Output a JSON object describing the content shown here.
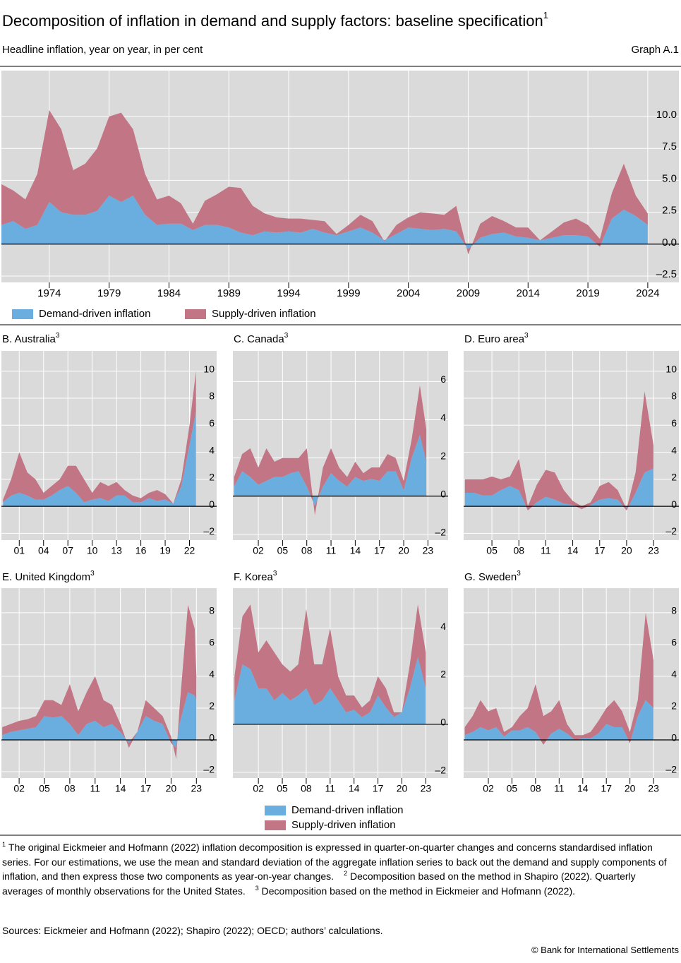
{
  "header": {
    "title": "Decomposition of inflation in demand and supply factors: baseline specification",
    "title_note": "1",
    "subtitle": "Headline inflation, year on year, in per cent",
    "graph_label": "Graph A.1"
  },
  "chart_data": [
    {
      "type": "area",
      "title": "A. United States",
      "title_note": "2",
      "x": [
        1970,
        1971,
        1972,
        1973,
        1974,
        1975,
        1976,
        1977,
        1978,
        1979,
        1980,
        1981,
        1982,
        1983,
        1984,
        1985,
        1986,
        1987,
        1988,
        1989,
        1990,
        1991,
        1992,
        1993,
        1994,
        1995,
        1996,
        1997,
        1998,
        1999,
        2000,
        2001,
        2002,
        2003,
        2004,
        2005,
        2006,
        2007,
        2008,
        2009,
        2010,
        2011,
        2012,
        2013,
        2014,
        2015,
        2016,
        2017,
        2018,
        2019,
        2020,
        2021,
        2022,
        2023,
        2024
      ],
      "series": [
        {
          "name": "Demand-driven inflation",
          "color": "#6aaee0",
          "values": [
            1.5,
            1.8,
            1.2,
            1.5,
            3.3,
            2.5,
            2.3,
            2.3,
            2.6,
            3.8,
            3.3,
            3.8,
            2.3,
            1.5,
            1.6,
            1.6,
            1.1,
            1.5,
            1.5,
            1.3,
            0.9,
            0.7,
            1.0,
            0.9,
            1.0,
            0.9,
            1.2,
            0.9,
            0.7,
            1.0,
            1.3,
            0.9,
            0.3,
            0.8,
            1.3,
            1.2,
            1.1,
            1.2,
            1.0,
            -0.4,
            0.5,
            0.8,
            0.9,
            0.6,
            0.5,
            0.3,
            0.5,
            0.7,
            0.7,
            0.6,
            -0.2,
            2.0,
            2.7,
            2.2,
            1.5
          ]
        },
        {
          "name": "Supply-driven inflation",
          "color": "#c27585",
          "values": [
            3.2,
            2.4,
            2.3,
            4.0,
            7.2,
            6.5,
            3.5,
            4.0,
            4.9,
            6.2,
            7.0,
            5.2,
            3.2,
            2.0,
            2.2,
            1.6,
            0.5,
            1.9,
            2.4,
            3.2,
            3.5,
            2.3,
            1.4,
            1.2,
            1.0,
            1.1,
            0.7,
            0.9,
            0.1,
            0.5,
            1.0,
            0.9,
            -0.1,
            0.7,
            0.8,
            1.3,
            1.3,
            1.1,
            2.0,
            -0.4,
            1.1,
            1.4,
            0.9,
            0.7,
            0.8,
            0.0,
            0.5,
            1.0,
            1.3,
            0.9,
            0.6,
            2.0,
            3.6,
            1.6,
            0.9
          ]
        }
      ],
      "xlim": [
        1970,
        2026.6
      ],
      "xticks": [
        1974,
        1979,
        1984,
        1989,
        1994,
        1999,
        2004,
        2009,
        2014,
        2019,
        2024
      ],
      "ylim": [
        -3,
        13.6
      ],
      "yticks": [
        {
          "value": -2.5,
          "label": "–2.5"
        },
        {
          "value": 0,
          "label": "0.0"
        },
        2.5,
        {
          "value": 5,
          "label": "5.0"
        },
        7.5,
        {
          "value": 10,
          "label": "10.0"
        }
      ],
      "grid": true
    },
    {
      "type": "area",
      "title": "B. Australia",
      "title_note": "3",
      "x": [
        1999,
        2000,
        2001,
        2002,
        2003,
        2004,
        2005,
        2006,
        2007,
        2008,
        2009,
        2010,
        2011,
        2012,
        2013,
        2014,
        2015,
        2016,
        2017,
        2018,
        2019,
        2020,
        2021,
        2022,
        2022.8
      ],
      "series": [
        {
          "name": "Demand-driven inflation",
          "color": "#6aaee0",
          "values": [
            0.3,
            0.8,
            1.0,
            0.8,
            0.5,
            0.5,
            0.8,
            1.2,
            1.5,
            1.0,
            0.3,
            0.5,
            0.6,
            0.4,
            0.8,
            0.8,
            0.3,
            0.3,
            0.6,
            0.4,
            0.5,
            0.2,
            1.5,
            4.5,
            7.0
          ]
        },
        {
          "name": "Supply-driven inflation",
          "color": "#c27585",
          "values": [
            0.2,
            1.2,
            3.0,
            1.7,
            1.5,
            0.5,
            0.7,
            0.8,
            1.5,
            2.0,
            1.7,
            0.5,
            1.2,
            1.1,
            1.0,
            0.4,
            0.5,
            0.3,
            0.4,
            0.8,
            0.4,
            0.0,
            0.5,
            1.5,
            3.0
          ]
        }
      ],
      "xlim": [
        1998.8,
        2023.0
      ],
      "xticks": [
        {
          "value": 2001,
          "label": "01"
        },
        {
          "value": 2004,
          "label": "04"
        },
        {
          "value": 2007,
          "label": "07"
        },
        {
          "value": 2010,
          "label": "10"
        },
        {
          "value": 2013,
          "label": "13"
        },
        {
          "value": 2016,
          "label": "16"
        },
        {
          "value": 2019,
          "label": "19"
        },
        {
          "value": 2022,
          "label": "22"
        }
      ],
      "ylim": [
        -2.5,
        11.5
      ],
      "yticks": [
        {
          "value": -2,
          "label": "–2"
        },
        0,
        2,
        4,
        6,
        8,
        10
      ],
      "grid": true
    },
    {
      "type": "area",
      "title": "C. Canada",
      "title_note": "3",
      "x": [
        1999,
        2000,
        2001,
        2002,
        2003,
        2004,
        2005,
        2006,
        2007,
        2008,
        2009,
        2010,
        2011,
        2012,
        2013,
        2014,
        2015,
        2016,
        2017,
        2018,
        2019,
        2020,
        2021,
        2022,
        2022.8
      ],
      "series": [
        {
          "color": "#6aaee0",
          "values": [
            0.5,
            1.3,
            1.0,
            0.6,
            0.8,
            1.0,
            1.0,
            1.2,
            1.3,
            0.5,
            -0.5,
            0.5,
            1.2,
            0.8,
            0.5,
            1.0,
            0.8,
            0.9,
            0.8,
            1.3,
            1.3,
            0.3,
            2.0,
            3.2,
            1.8
          ]
        },
        {
          "color": "#c27585",
          "values": [
            0.5,
            0.9,
            1.5,
            0.9,
            1.7,
            0.8,
            1.0,
            0.8,
            0.7,
            2.0,
            -0.5,
            1.0,
            1.3,
            0.7,
            0.5,
            0.8,
            0.4,
            0.6,
            0.7,
            0.9,
            0.7,
            0.5,
            1.0,
            2.6,
            1.7
          ]
        }
      ],
      "xlim": [
        1998.85,
        2025.5
      ],
      "xticks": [
        {
          "value": 2002,
          "label": "02"
        },
        {
          "value": 2005,
          "label": "05"
        },
        {
          "value": 2008,
          "label": "08"
        },
        {
          "value": 2011,
          "label": "11"
        },
        {
          "value": 2014,
          "label": "14"
        },
        {
          "value": 2017,
          "label": "17"
        },
        {
          "value": 2020,
          "label": "20"
        },
        {
          "value": 2023,
          "label": "23"
        }
      ],
      "ylim": [
        -2.3,
        7.6
      ],
      "yticks": [
        {
          "value": -2,
          "label": "–2"
        },
        0,
        2,
        4,
        6
      ],
      "grid": true
    },
    {
      "type": "area",
      "title": "D. Euro area",
      "title_note": "3",
      "x": [
        2002,
        2003,
        2004,
        2005,
        2006,
        2007,
        2008,
        2009,
        2010,
        2011,
        2012,
        2013,
        2014,
        2015,
        2016,
        2017,
        2018,
        2019,
        2020,
        2021,
        2022,
        2023
      ],
      "series": [
        {
          "color": "#6aaee0",
          "values": [
            1.0,
            1.0,
            0.8,
            0.8,
            1.2,
            1.5,
            1.2,
            -0.3,
            0.3,
            0.7,
            0.5,
            0.2,
            0.1,
            -0.2,
            0.1,
            0.5,
            0.6,
            0.5,
            -0.3,
            1.0,
            2.5,
            2.8
          ]
        },
        {
          "color": "#c27585",
          "values": [
            1.0,
            1.0,
            1.2,
            1.4,
            0.8,
            0.7,
            2.3,
            0.3,
            1.3,
            2.0,
            2.0,
            1.0,
            0.3,
            0.2,
            0.2,
            1.0,
            1.2,
            0.7,
            0.1,
            1.5,
            6.0,
            1.7
          ]
        }
      ],
      "xlim": [
        2001.85,
        2023.7
      ],
      "xticks": [
        {
          "value": 2005,
          "label": "05"
        },
        {
          "value": 2008,
          "label": "08"
        },
        {
          "value": 2011,
          "label": "11"
        },
        {
          "value": 2014,
          "label": "14"
        },
        {
          "value": 2017,
          "label": "17"
        },
        {
          "value": 2020,
          "label": "20"
        },
        {
          "value": 2023,
          "label": "23"
        }
      ],
      "ylim": [
        -2.5,
        11.5
      ],
      "yticks": [
        {
          "value": -2,
          "label": "–2"
        },
        0,
        2,
        4,
        6,
        8,
        10
      ],
      "grid": true
    },
    {
      "type": "area",
      "title": "E. United Kingdom",
      "title_note": "3",
      "x": [
        2000,
        2001,
        2002,
        2003,
        2004,
        2005,
        2006,
        2007,
        2008,
        2009,
        2010,
        2011,
        2012,
        2013,
        2014,
        2015,
        2016,
        2017,
        2018,
        2019,
        2020,
        2020.6,
        2021,
        2022,
        2022.8,
        2023
      ],
      "series": [
        {
          "color": "#6aaee0",
          "values": [
            0.3,
            0.5,
            0.6,
            0.7,
            0.8,
            1.5,
            1.4,
            1.5,
            1.0,
            0.3,
            1.0,
            1.2,
            0.8,
            1.0,
            0.5,
            -0.2,
            0.5,
            1.5,
            1.2,
            1.0,
            -0.2,
            -0.5,
            1.0,
            3.0,
            2.8,
            2.5
          ]
        },
        {
          "color": "#c27585",
          "values": [
            0.5,
            0.5,
            0.6,
            0.6,
            0.7,
            1.0,
            1.1,
            0.7,
            2.5,
            1.5,
            2.0,
            2.8,
            1.7,
            1.2,
            0.5,
            -0.3,
            0.0,
            1.0,
            0.8,
            0.5,
            0.4,
            -0.7,
            1.0,
            5.5,
            4.2,
            1.5
          ]
        }
      ],
      "xlim": [
        1999.9,
        2025.4
      ],
      "xticks": [
        {
          "value": 2002,
          "label": "02"
        },
        {
          "value": 2005,
          "label": "05"
        },
        {
          "value": 2008,
          "label": "08"
        },
        {
          "value": 2011,
          "label": "11"
        },
        {
          "value": 2014,
          "label": "14"
        },
        {
          "value": 2017,
          "label": "17"
        },
        {
          "value": 2020,
          "label": "20"
        },
        {
          "value": 2023,
          "label": "23"
        }
      ],
      "ylim": [
        -2.4,
        9.55
      ],
      "yticks": [
        {
          "value": -2,
          "label": "–2"
        },
        0,
        2,
        4,
        6,
        8
      ],
      "grid": true
    },
    {
      "type": "area",
      "title": "F. Korea",
      "title_note": "3",
      "x": [
        1999,
        2000,
        2001,
        2002,
        2003,
        2004,
        2005,
        2006,
        2007,
        2008,
        2009,
        2010,
        2011,
        2012,
        2013,
        2014,
        2015,
        2016,
        2017,
        2018,
        2019,
        2020,
        2021,
        2022,
        2023
      ],
      "series": [
        {
          "color": "#6aaee0",
          "values": [
            1.0,
            2.5,
            2.3,
            1.5,
            1.5,
            1.0,
            1.3,
            1.0,
            1.2,
            1.5,
            0.8,
            1.0,
            1.5,
            1.0,
            0.5,
            0.6,
            0.3,
            0.5,
            1.2,
            0.7,
            0.3,
            0.5,
            1.5,
            2.8,
            1.5
          ]
        },
        {
          "color": "#c27585",
          "values": [
            1.0,
            2.0,
            2.7,
            1.5,
            2.0,
            2.0,
            1.2,
            1.2,
            1.3,
            3.3,
            1.7,
            1.5,
            2.5,
            1.0,
            0.7,
            0.6,
            0.4,
            0.5,
            0.8,
            0.8,
            0.2,
            0.0,
            1.0,
            2.2,
            1.5
          ]
        }
      ],
      "xlim": [
        1998.8,
        2025.8
      ],
      "xticks": [
        {
          "value": 2002,
          "label": "02"
        },
        {
          "value": 2005,
          "label": "05"
        },
        {
          "value": 2008,
          "label": "08"
        },
        {
          "value": 2011,
          "label": "11"
        },
        {
          "value": 2014,
          "label": "14"
        },
        {
          "value": 2017,
          "label": "17"
        },
        {
          "value": 2020,
          "label": "20"
        },
        {
          "value": 2023,
          "label": "23"
        }
      ],
      "ylim": [
        -2.24,
        5.68
      ],
      "yticks": [
        {
          "value": -2,
          "label": "–2"
        },
        0,
        2,
        4
      ],
      "grid": true
    },
    {
      "type": "area",
      "title": "G. Sweden",
      "title_note": "3",
      "x": [
        1999,
        2000,
        2001,
        2002,
        2003,
        2004,
        2005,
        2006,
        2007,
        2008,
        2009,
        2010,
        2011,
        2012,
        2013,
        2014,
        2015,
        2016,
        2017,
        2018,
        2019,
        2020,
        2021,
        2022,
        2023
      ],
      "series": [
        {
          "color": "#6aaee0",
          "values": [
            0.3,
            0.5,
            0.8,
            0.6,
            0.8,
            0.2,
            0.6,
            0.6,
            0.8,
            0.5,
            -0.3,
            0.4,
            0.7,
            0.4,
            0.0,
            0.1,
            0.1,
            0.4,
            1.0,
            0.8,
            0.8,
            -0.2,
            1.5,
            2.5,
            2.0
          ]
        },
        {
          "color": "#c27585",
          "values": [
            0.5,
            1.0,
            1.7,
            1.2,
            1.2,
            0.3,
            0.2,
            0.9,
            1.2,
            3.0,
            1.8,
            1.4,
            1.8,
            0.6,
            0.3,
            0.2,
            0.4,
            0.8,
            1.0,
            1.7,
            1.0,
            0.7,
            1.0,
            5.5,
            3.0
          ]
        }
      ],
      "xlim": [
        1998.86,
        2023.8
      ],
      "xticks": [
        {
          "value": 2002,
          "label": "02"
        },
        {
          "value": 2005,
          "label": "05"
        },
        {
          "value": 2008,
          "label": "08"
        },
        {
          "value": 2011,
          "label": "11"
        },
        {
          "value": 2014,
          "label": "14"
        },
        {
          "value": 2017,
          "label": "17"
        },
        {
          "value": 2020,
          "label": "20"
        },
        {
          "value": 2023,
          "label": "23"
        }
      ],
      "ylim": [
        -2.4,
        9.55
      ],
      "yticks": [
        {
          "value": -2,
          "label": "–2"
        },
        0,
        2,
        4,
        6,
        8
      ],
      "grid": true
    }
  ],
  "footnotes": [
    {
      "marker": "1",
      "text": "The original Eickmeier and Hofmann (2022) inflation decomposition is expressed in quarter-on-quarter changes and concerns standardised inflation series. For our estimations, we use the mean and standard deviation of the aggregate inflation series to back out the demand and supply components of inflation, and then express those two components as year-on-year changes."
    },
    {
      "marker": "2",
      "text": "Decomposition based on the method in Shapiro (2022). Quarterly averages of monthly observations for the United States."
    },
    {
      "marker": "3",
      "text": "Decomposition based on the method in Eickmeier and Hofmann (2022)."
    }
  ],
  "sources": "Sources: Eickmeier and Hofmann (2022); Shapiro (2022); OECD; authors’ calculations.",
  "copyright": "© Bank for International Settlements"
}
